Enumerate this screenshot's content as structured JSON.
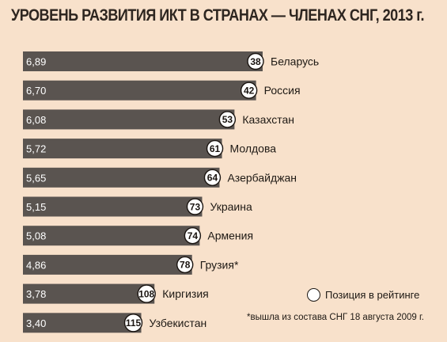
{
  "chart_data": {
    "type": "bar",
    "orientation": "horizontal",
    "title": "УРОВЕНЬ РАЗВИТИЯ ИКТ В СТРАНАХ — ЧЛЕНАХ СНГ, 2013 г.",
    "categories": [
      "Беларусь",
      "Россия",
      "Казахстан",
      "Молдова",
      "Азербайджан",
      "Украина",
      "Армения",
      "Грузия*",
      "Киргизия",
      "Узбекистан"
    ],
    "values": [
      6.89,
      6.7,
      6.08,
      5.72,
      5.65,
      5.15,
      5.08,
      4.86,
      3.78,
      3.4
    ],
    "value_labels": [
      "6,89",
      "6,70",
      "6,08",
      "5,72",
      "5,65",
      "5,15",
      "5,08",
      "4,86",
      "3,78",
      "3,40"
    ],
    "ranks": [
      "38",
      "42",
      "53",
      "61",
      "64",
      "73",
      "74",
      "78",
      "108",
      "115"
    ],
    "xlim": [
      0,
      6.89
    ],
    "legend": {
      "label": "Позиция в рейтинге",
      "placement": "bottom-right"
    },
    "footnote": "*вышла из состава СНГ 18 августа 2009 г.",
    "colors": {
      "bar": "#5a5450",
      "background": "#f8e1cb",
      "rank_circle": "#ffffff",
      "text": "#1e1914"
    }
  }
}
